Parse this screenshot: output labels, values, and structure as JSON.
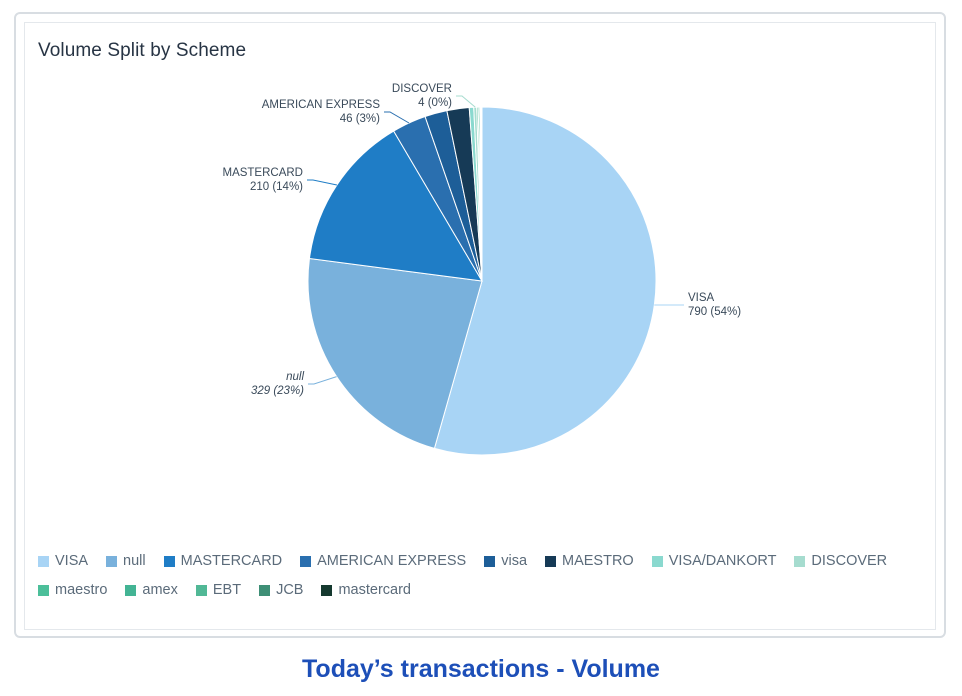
{
  "chart_data": {
    "type": "pie",
    "title": "Volume Split by Scheme",
    "slices": [
      {
        "name": "VISA",
        "value": 790,
        "pct": "54%",
        "label": "VISA",
        "color": "#a8d4f5"
      },
      {
        "name": "null",
        "value": 329,
        "pct": "23%",
        "label": "null",
        "italic": true,
        "color": "#79b1dc"
      },
      {
        "name": "MASTERCARD",
        "value": 210,
        "pct": "14%",
        "label": "MASTERCARD",
        "color": "#1f7dc6"
      },
      {
        "name": "AMERICAN EXPRESS",
        "value": 46,
        "pct": "3%",
        "label": "AMERICAN EXPRESS",
        "color": "#2a6faf"
      },
      {
        "name": "visa",
        "value": 30,
        "pct": "",
        "label": "",
        "color": "#1d5e98"
      },
      {
        "name": "MAESTRO",
        "value": 30,
        "pct": "",
        "label": "",
        "color": "#163a56"
      },
      {
        "name": "VISA/DANKORT",
        "value": 6,
        "pct": "",
        "label": "",
        "color": "#8ad9cf"
      },
      {
        "name": "DISCOVER",
        "value": 4,
        "pct": "0%",
        "label": "DISCOVER",
        "color": "#a6dccf"
      },
      {
        "name": "maestro",
        "value": 2,
        "pct": "",
        "label": "",
        "color": "#4cbf9a"
      },
      {
        "name": "amex",
        "value": 2,
        "pct": "",
        "label": "",
        "color": "#43b494"
      },
      {
        "name": "EBT",
        "value": 1,
        "pct": "",
        "label": "",
        "color": "#51b896"
      },
      {
        "name": "JCB",
        "value": 1,
        "pct": "",
        "label": "",
        "color": "#3e8f76"
      },
      {
        "name": "mastercard",
        "value": 1,
        "pct": "",
        "label": "",
        "color": "#15392f"
      }
    ],
    "data_labels": [
      {
        "name": "VISA",
        "line1": "VISA",
        "line2": "790 (54%)"
      },
      {
        "name": "null",
        "line1": "null",
        "line2": "329 (23%)"
      },
      {
        "name": "MASTERCARD",
        "line1": "MASTERCARD",
        "line2": "210 (14%)"
      },
      {
        "name": "AMERICAN EXPRESS",
        "line1": "AMERICAN EXPRESS",
        "line2": "46 (3%)"
      },
      {
        "name": "DISCOVER",
        "line1": "DISCOVER",
        "line2": "4 (0%)"
      }
    ],
    "legend": [
      {
        "label": "VISA",
        "color": "#a8d4f5"
      },
      {
        "label": "null",
        "color": "#79b1dc"
      },
      {
        "label": "MASTERCARD",
        "color": "#1f7dc6"
      },
      {
        "label": "AMERICAN EXPRESS",
        "color": "#2a6faf"
      },
      {
        "label": "visa",
        "color": "#1d5e98"
      },
      {
        "label": "MAESTRO",
        "color": "#163a56"
      },
      {
        "label": "VISA/DANKORT",
        "color": "#8ad9cf"
      },
      {
        "label": "DISCOVER",
        "color": "#a6dccf"
      },
      {
        "label": "maestro",
        "color": "#4cbf9a"
      },
      {
        "label": "amex",
        "color": "#43b494"
      },
      {
        "label": "EBT",
        "color": "#51b896"
      },
      {
        "label": "JCB",
        "color": "#3e8f76"
      },
      {
        "label": "mastercard",
        "color": "#15392f"
      }
    ],
    "legend_position": "bottom-left"
  },
  "caption": "Today’s transactions - Volume"
}
